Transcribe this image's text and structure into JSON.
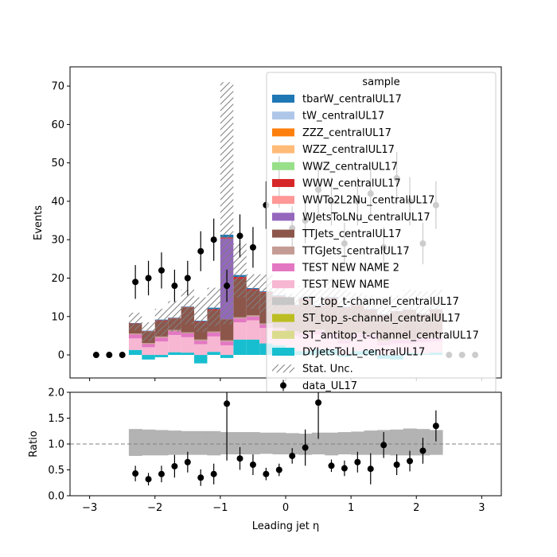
{
  "chart_data": {
    "type": "bar",
    "title": "",
    "xlabel": "Leading jet  η",
    "main": {
      "ylabel": "Events",
      "xlim": [
        -3.3,
        3.3
      ],
      "ylim": [
        -6,
        75
      ],
      "xticks": [
        "−3",
        "−2",
        "−1",
        "0",
        "1",
        "2",
        "3"
      ],
      "xtick_values": [
        -3,
        -2,
        -1,
        0,
        1,
        2,
        3
      ],
      "yticks": [
        "0",
        "10",
        "20",
        "30",
        "40",
        "50",
        "60",
        "70"
      ],
      "ytick_values": [
        0,
        10,
        20,
        30,
        40,
        50,
        60,
        70
      ],
      "bin_edges": [
        -2.4,
        -2.2,
        -2.0,
        -1.8,
        -1.6,
        -1.4,
        -1.2,
        -1.0,
        -0.8,
        -0.6,
        -0.4,
        -0.2,
        0.0,
        0.2,
        0.4,
        0.6,
        0.8,
        1.0,
        1.2,
        1.4,
        1.6,
        1.8,
        2.0,
        2.2,
        2.4
      ],
      "series": [
        {
          "name": "DYJetsToLL_centralUL17",
          "color": "#17becf",
          "values": [
            1.3,
            -1.2,
            -0.6,
            0.7,
            0.6,
            -2.2,
            0.8,
            -0.8,
            4.0,
            4.0,
            3.0,
            2.5,
            1.0,
            1.0,
            1.5,
            1.5,
            -0.5,
            1.0,
            1.2,
            -1.0,
            -1.2,
            0.5,
            0.3,
            0.6
          ]
        },
        {
          "name": "TEST NEW NAME",
          "color": "#f7b6d2",
          "values": [
            3.0,
            2.0,
            3.5,
            4.5,
            4.0,
            2.8,
            4.0,
            2.5,
            4.5,
            5.0,
            4.0,
            3.5,
            4.0,
            3.5,
            3.8,
            3.0,
            3.0,
            3.5,
            3.0,
            2.5,
            3.0,
            2.5,
            3.0,
            3.0
          ]
        },
        {
          "name": "TEST NEW NAME 2",
          "color": "#e377c2",
          "values": [
            1.0,
            0.8,
            1.0,
            1.0,
            1.0,
            0.9,
            1.0,
            1.0,
            1.0,
            1.0,
            0.9,
            0.8,
            0.9,
            1.0,
            1.0,
            0.9,
            0.8,
            1.0,
            1.0,
            0.9,
            0.9,
            0.8,
            0.9,
            0.8
          ]
        },
        {
          "name": "TTGJets_centralUL17",
          "color": "#c49c94",
          "values": [
            0.3,
            0.3,
            0.3,
            0.3,
            0.3,
            0.3,
            0.3,
            0.3,
            0.3,
            0.3,
            0.3,
            0.3,
            0.3,
            0.3,
            0.3,
            0.3,
            0.3,
            0.3,
            0.3,
            0.3,
            0.3,
            0.3,
            0.3,
            0.3
          ]
        },
        {
          "name": "TTJets_centralUL17",
          "color": "#8c564b",
          "values": [
            2.5,
            3.0,
            4.0,
            3.0,
            6.5,
            4.5,
            5.5,
            5.5,
            10.0,
            6.5,
            8.0,
            8.0,
            6.5,
            8.5,
            6.0,
            9.0,
            8.0,
            7.0,
            6.0,
            6.5,
            7.0,
            7.5,
            6.0,
            7.0
          ]
        },
        {
          "name": "WJetsToLNu_centralUL17",
          "color": "#9467bd",
          "values": [
            0,
            0,
            0,
            0,
            0,
            0,
            0,
            21.0,
            0,
            0,
            0,
            0,
            0,
            0,
            0,
            0,
            0,
            0,
            0,
            0,
            0,
            0,
            0,
            0
          ]
        },
        {
          "name": "WWW_centralUL17",
          "color": "#d62728",
          "values": [
            0.1,
            0.1,
            0.2,
            0.1,
            0.1,
            0.2,
            0.3,
            0.3,
            0.5,
            0.3,
            0.2,
            0.2,
            0.2,
            0.3,
            0.2,
            0.2,
            0.2,
            0.2,
            0.2,
            0.2,
            0.1,
            0.1,
            0.1,
            0.1
          ]
        },
        {
          "name": "tbarW_centralUL17",
          "color": "#1f77b4",
          "values": [
            0.1,
            0.1,
            0.2,
            0.1,
            0.1,
            0.2,
            0.4,
            0.7,
            0.5,
            0.3,
            0.2,
            0.2,
            0.2,
            0.3,
            0.2,
            0.2,
            0.2,
            0.2,
            0.2,
            0.2,
            0.1,
            0.1,
            0.1,
            0.1
          ]
        }
      ],
      "stat_unc": {
        "label": "Stat. Unc.",
        "down": [
          6.5,
          3.5,
          5.0,
          6.0,
          8.0,
          6.0,
          7.5,
          8.0,
          15.0,
          12.0,
          11.0,
          10.0,
          9.0,
          10.0,
          8.5,
          11.0,
          9.0,
          9.5,
          8.5,
          7.5,
          7.0,
          8.0,
          7.0,
          8.0
        ],
        "up": [
          11.0,
          8.5,
          12.0,
          14.0,
          17.0,
          15.0,
          17.5,
          71.0,
          29.0,
          21.0,
          21.0,
          19.0,
          16.0,
          18.0,
          17.0,
          20.0,
          17.0,
          16.0,
          15.5,
          15.0,
          15.5,
          17.0,
          16.5,
          17.0
        ]
      },
      "data": {
        "label": "data_UL17",
        "x": [
          -2.9,
          -2.7,
          -2.5,
          -2.3,
          -2.1,
          -1.9,
          -1.7,
          -1.5,
          -1.3,
          -1.1,
          -0.9,
          -0.7,
          -0.5,
          -0.3,
          -0.1,
          0.1,
          0.3,
          0.5,
          0.7,
          0.9,
          1.1,
          1.3,
          1.5,
          1.7,
          1.9,
          2.1,
          2.3,
          2.5,
          2.7,
          2.9
        ],
        "y": [
          0,
          0,
          0,
          19,
          20,
          22,
          18,
          20,
          27,
          30,
          18,
          31,
          28,
          39,
          45,
          33,
          35,
          43,
          40,
          29,
          40,
          42,
          28,
          46,
          40,
          29,
          39,
          0,
          0,
          0
        ],
        "err": [
          0,
          0,
          0,
          4.4,
          4.5,
          4.7,
          4.2,
          4.5,
          5.2,
          5.5,
          4.2,
          5.6,
          5.3,
          6.2,
          6.7,
          5.7,
          5.9,
          6.6,
          6.3,
          5.4,
          6.3,
          6.5,
          5.3,
          6.8,
          6.3,
          5.4,
          6.2,
          0,
          0,
          0
        ]
      }
    },
    "ratio": {
      "ylabel": "Ratio",
      "ylim": [
        0.0,
        2.0
      ],
      "yticks": [
        "0.0",
        "0.5",
        "1.0",
        "1.5",
        "2.0"
      ],
      "ytick_values": [
        0.0,
        0.5,
        1.0,
        1.5,
        2.0
      ],
      "reference_line": 1.0,
      "band_low": [
        0.77,
        0.78,
        0.78,
        0.79,
        0.79,
        0.79,
        0.78,
        0.8,
        0.8,
        0.8,
        0.81,
        0.8,
        0.8,
        0.79,
        0.8,
        0.78,
        0.8,
        0.79,
        0.79,
        0.79,
        0.78,
        0.78,
        0.78,
        0.79
      ],
      "band_high": [
        1.29,
        1.28,
        1.27,
        1.26,
        1.25,
        1.25,
        1.25,
        1.23,
        1.23,
        1.23,
        1.22,
        1.22,
        1.21,
        1.2,
        1.22,
        1.22,
        1.23,
        1.24,
        1.26,
        1.27,
        1.28,
        1.3,
        1.29,
        1.27
      ],
      "points": {
        "x": [
          -2.3,
          -2.1,
          -1.9,
          -1.7,
          -1.5,
          -1.3,
          -1.1,
          -0.9,
          -0.7,
          -0.5,
          -0.3,
          -0.1,
          0.1,
          0.3,
          0.5,
          0.7,
          0.9,
          1.1,
          1.3,
          1.5,
          1.7,
          1.9,
          2.1,
          2.3
        ],
        "y": [
          0.43,
          0.32,
          0.42,
          0.57,
          0.65,
          0.35,
          0.42,
          1.78,
          0.72,
          0.6,
          0.42,
          0.5,
          0.77,
          0.93,
          1.8,
          0.58,
          0.53,
          0.65,
          0.52,
          0.98,
          0.6,
          0.67,
          0.87,
          1.35
        ],
        "err": [
          0.15,
          0.12,
          0.16,
          0.22,
          0.2,
          0.16,
          0.2,
          1.1,
          0.22,
          0.2,
          0.12,
          0.12,
          0.15,
          0.35,
          0.7,
          0.12,
          0.15,
          0.2,
          0.3,
          0.25,
          0.2,
          0.2,
          0.25,
          0.3
        ]
      }
    },
    "legend": {
      "title": "sample",
      "placement": "upper-right",
      "entries": [
        {
          "label": "tbarW_centralUL17",
          "kind": "patch",
          "color": "#1f77b4"
        },
        {
          "label": "tW_centralUL17",
          "kind": "patch",
          "color": "#aec7e8"
        },
        {
          "label": "ZZZ_centralUL17",
          "kind": "patch",
          "color": "#ff7f0e"
        },
        {
          "label": "WZZ_centralUL17",
          "kind": "patch",
          "color": "#ffbb78"
        },
        {
          "label": "WWZ_centralUL17",
          "kind": "patch",
          "color": "#98df8a"
        },
        {
          "label": "WWW_centralUL17",
          "kind": "patch",
          "color": "#d62728"
        },
        {
          "label": "WWTo2L2Nu_centralUL17",
          "kind": "patch",
          "color": "#ff9896"
        },
        {
          "label": "WJetsToLNu_centralUL17",
          "kind": "patch",
          "color": "#9467bd"
        },
        {
          "label": "TTJets_centralUL17",
          "kind": "patch",
          "color": "#8c564b"
        },
        {
          "label": "TTGJets_centralUL17",
          "kind": "patch",
          "color": "#c49c94"
        },
        {
          "label": "TEST NEW NAME 2",
          "kind": "patch",
          "color": "#e377c2"
        },
        {
          "label": "TEST NEW NAME",
          "kind": "patch",
          "color": "#f7b6d2"
        },
        {
          "label": "ST_top_t-channel_centralUL17",
          "kind": "patch",
          "color": "#c7c7c7"
        },
        {
          "label": "ST_top_s-channel_centralUL17",
          "kind": "patch",
          "color": "#bcbd22"
        },
        {
          "label": "ST_antitop_t-channel_centralUL17",
          "kind": "patch",
          "color": "#dbdb8d"
        },
        {
          "label": "DYJetsToLL_centralUL17",
          "kind": "patch",
          "color": "#17becf"
        },
        {
          "label": "Stat. Unc.",
          "kind": "hatch",
          "color": "#808080"
        },
        {
          "label": "data_UL17",
          "kind": "marker",
          "color": "#000000"
        }
      ]
    }
  }
}
